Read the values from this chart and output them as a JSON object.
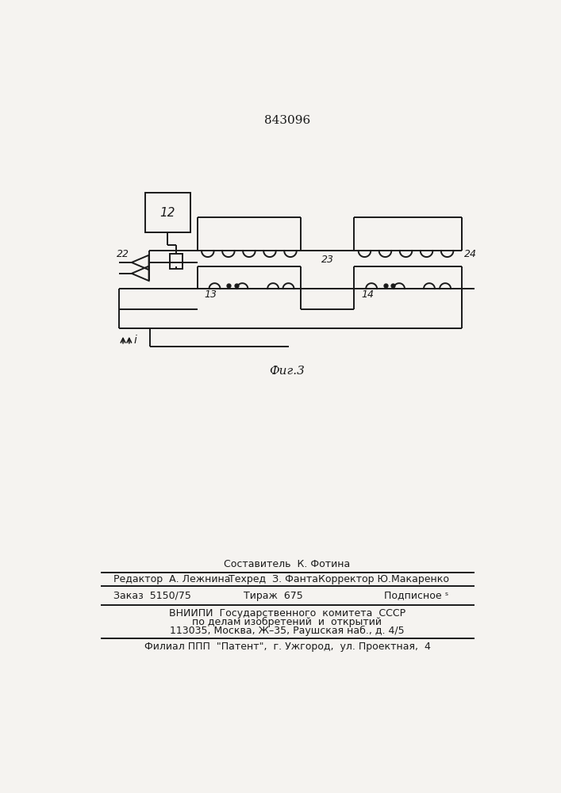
{
  "title": "843096",
  "fig_label": "Фиг.3",
  "bg_color": "#f5f3f0",
  "line_color": "#1a1a1a",
  "lw": 1.4,
  "title_fontsize": 11,
  "footer": {
    "line1": "Составитель  К. Фотина",
    "line2_left": "Редактор  А. Лежнина",
    "line2_mid": "Техред  З. Фанта",
    "line2_right": "Корректор Ю.Макаренко",
    "line3_left": "Заказ  5150/75",
    "line3_mid": "Тираж  675",
    "line3_right": "Подписное ˢ",
    "line4": "ВНИИПИ  Государственного  комитета  СССР",
    "line5": "по делам изобретений  и  открытий",
    "line6": "113035, Москва, Ж–35, Раушская наб., д. 4/5",
    "line7": "Филиал ППП  \"Патент\",  г. Ужгород,  ул. Проектная,  4"
  }
}
